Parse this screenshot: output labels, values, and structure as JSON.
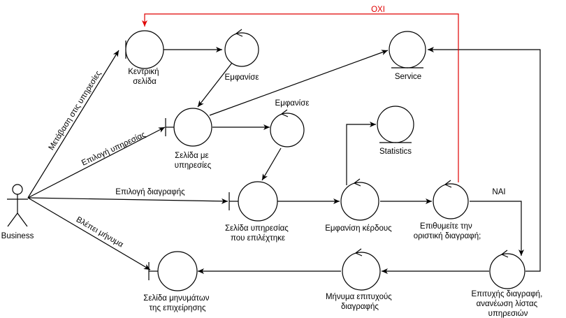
{
  "actor": {
    "label": "Business"
  },
  "nodes": {
    "home": {
      "lines": [
        "Κεντρική",
        "σελίδα"
      ]
    },
    "show1": {
      "lines": [
        "Εμφανίσε"
      ]
    },
    "service": {
      "lines": [
        "Service"
      ]
    },
    "services_page": {
      "lines": [
        "Σελίδα με",
        "υπηρεσίες"
      ]
    },
    "show2": {
      "lines": [
        "Εμφανίσε"
      ]
    },
    "statistics": {
      "lines": [
        "Statistics"
      ]
    },
    "selected_page": {
      "lines": [
        "Σελίδα υπηρεσίας",
        "που επιλέχτηκε"
      ]
    },
    "show_profit": {
      "lines": [
        "Εμφανίση κέρδους"
      ]
    },
    "confirm": {
      "lines": [
        "Επιθυμείτε την",
        "οριστική διαγραφή;"
      ]
    },
    "success_update": {
      "lines": [
        "Επιτυχής διαγραφή,",
        "ανανέωση λίστας",
        "υπηρεσιών"
      ]
    },
    "success_msg": {
      "lines": [
        "Μήνυμα επιτυχούς",
        "διαγραφής"
      ]
    },
    "messages_page": {
      "lines": [
        "Σελίδα μηνυμάτων",
        "της επιχείρησης"
      ]
    }
  },
  "edge_labels": {
    "to_services": "Μετάβαση στις υπηρεσίες",
    "select_service": "Επιλογή υπηρεσίας",
    "select_delete": "Επιλογή διαγραφής",
    "sees_message": "Βλέπει μήνυμα",
    "no": "ΟΧΙ",
    "yes": "ΝΑΙ"
  },
  "colors": {
    "stroke": "#000000",
    "rejected_flow": "#e00000"
  }
}
